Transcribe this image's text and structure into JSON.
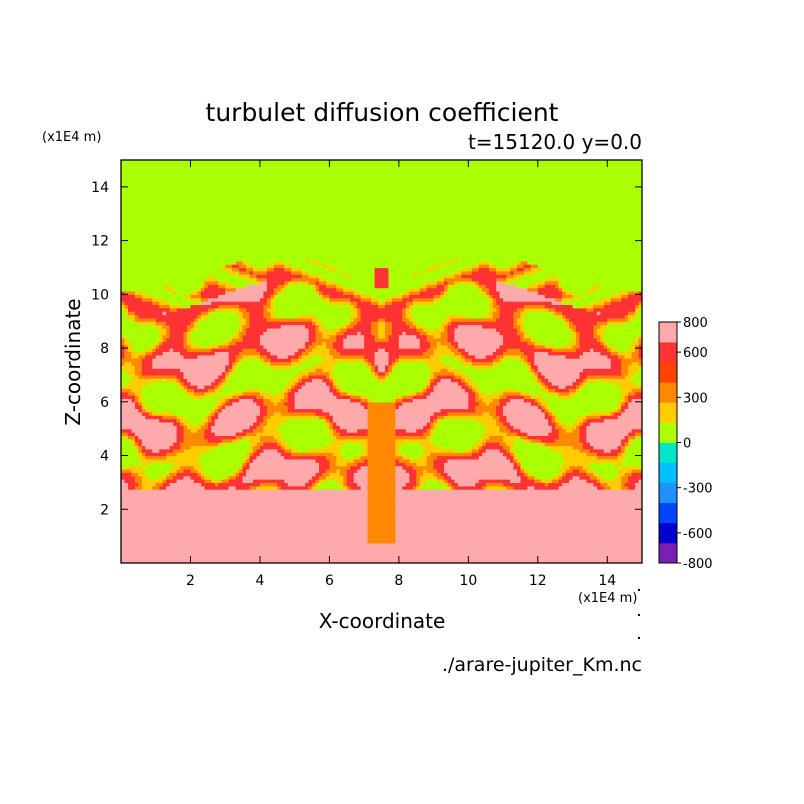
{
  "chart_data": {
    "type": "heatmap",
    "title": "turbulet diffusion coefficient",
    "subtitle": "t=15120.0 y=0.0",
    "xlabel": "X-coordinate",
    "ylabel": "Z-coordinate",
    "x_unit": "(x1E4 m)",
    "y_unit": "(x1E4 m)",
    "source_file": "./arare-jupiter_Km.nc",
    "xlim": [
      0,
      15
    ],
    "ylim": [
      0,
      15
    ],
    "x_ticks": [
      2,
      4,
      6,
      8,
      10,
      12,
      14
    ],
    "y_ticks": [
      2,
      4,
      6,
      8,
      10,
      12,
      14
    ],
    "colorbar": {
      "levels": [
        -800,
        -700,
        -600,
        -450,
        -300,
        -150,
        0,
        150,
        300,
        450,
        600,
        700,
        800
      ],
      "tick_labels": [
        "800",
        "600",
        "300",
        "0",
        "-300",
        "-600",
        "-800"
      ],
      "tick_values": [
        800,
        600,
        300,
        0,
        -300,
        -600,
        -800
      ],
      "colors": [
        "#7d1fb3",
        "#0000cc",
        "#0044ff",
        "#1e90ff",
        "#00bfff",
        "#00e6c8",
        "#aaff00",
        "#ffcc00",
        "#ff8800",
        "#ff4400",
        "#ff3333",
        "#ffaaaa"
      ]
    },
    "field_description_values": {
      "upper_region_value": 0,
      "lower_region_value": 800
    }
  }
}
